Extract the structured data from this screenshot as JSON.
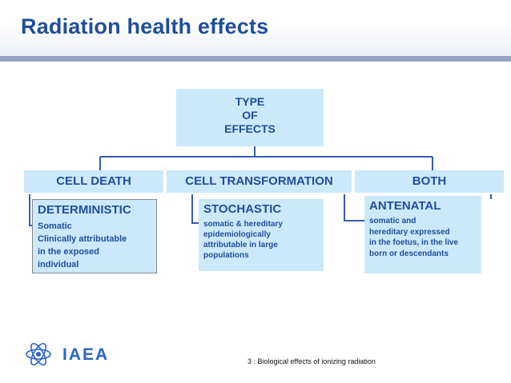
{
  "header": {
    "title": "Radiation health effects"
  },
  "diagram": {
    "root": [
      "TYPE",
      "OF",
      "EFFECTS"
    ],
    "categories": {
      "cell_death": "CELL DEATH",
      "cell_transformation": "CELL TRANSFORMATION",
      "both": "BOTH"
    },
    "effects": {
      "deterministic": {
        "heading": "DETERMINISTIC",
        "body": "Somatic\nClinically attributable\nin the exposed\nindividual"
      },
      "stochastic": {
        "heading": "STOCHASTIC",
        "body": "somatic & hereditary\nepidemiologically\nattributable in large\npopulations"
      },
      "antenatal": {
        "heading": "ANTENATAL",
        "body": "somatic and\nhereditary expressed\nin the foetus, in the live\nborn or descendants"
      }
    }
  },
  "footer": {
    "brand": "IAEA",
    "caption": "3 : Biological effects of ionizing radiation"
  },
  "colors": {
    "accent": "#1f4e9c",
    "box_fill": "#cce8fb",
    "title_rule": "#9aa2c6"
  }
}
